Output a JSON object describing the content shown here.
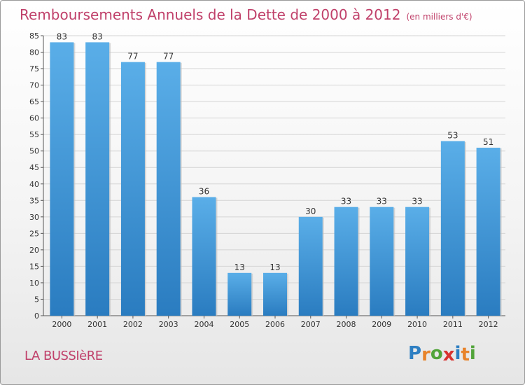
{
  "header": {
    "title": "Remboursements Annuels de la Dette de 2000 à 2012",
    "unit": "(en milliers d'€)"
  },
  "footer": {
    "commune": "LA BUSSIèRE",
    "logo_letters": [
      "P",
      "r",
      "o",
      "x",
      "i",
      "t",
      "i"
    ],
    "logo_colors": [
      "#2e7fc2",
      "#e8832a",
      "#52a43a",
      "#d8322f",
      "#2e7fc2",
      "#e8832a",
      "#52a43a"
    ]
  },
  "chart_data": {
    "type": "bar",
    "title": "Remboursements Annuels de la Dette de 2000 à 2012",
    "categories": [
      "2000",
      "2001",
      "2002",
      "2003",
      "2004",
      "2005",
      "2006",
      "2007",
      "2008",
      "2009",
      "2010",
      "2011",
      "2012"
    ],
    "values": [
      83,
      83,
      77,
      77,
      36,
      13,
      13,
      30,
      33,
      33,
      33,
      53,
      51
    ],
    "data_labels": [
      "83",
      "83",
      "77",
      "77",
      "36",
      "13",
      "13",
      "30",
      "33",
      "33",
      "33",
      "53",
      "51"
    ],
    "ylim": [
      0,
      85
    ],
    "yticks": [
      0,
      5,
      10,
      15,
      20,
      25,
      30,
      35,
      40,
      45,
      50,
      55,
      60,
      65,
      70,
      75,
      80,
      85
    ],
    "grid": true,
    "colors": {
      "bar_top": "#5aaee8",
      "bar_bottom": "#2a7cc0",
      "grid": "#d4d4d4",
      "axis": "#555555",
      "label": "#333333"
    }
  }
}
